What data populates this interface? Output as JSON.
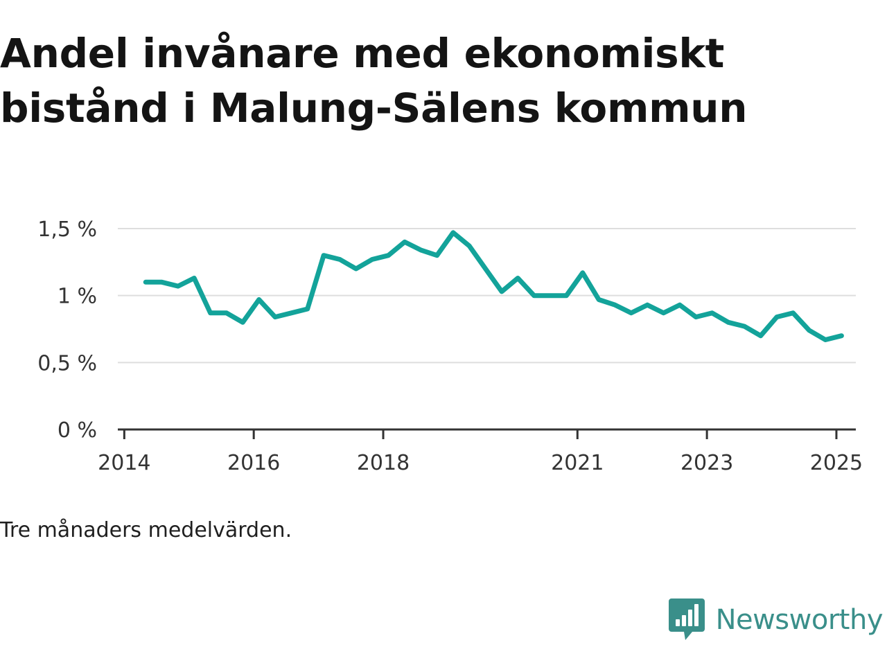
{
  "title_line1": "Andel invånare med ekonomiskt",
  "title_line2": "bistånd i Malung-Sälens kommun",
  "caption": "Tre månaders medelvärden.",
  "brand": {
    "name": "Newsworthy",
    "icon": "newsworthy-bar-chart-speech-bubble-icon",
    "color": "#3a8f8a"
  },
  "chart_data": {
    "type": "line",
    "title": "Andel invånare med ekonomiskt bistånd i Malung-Sälens kommun",
    "xlabel": "",
    "ylabel": "",
    "grid": true,
    "legend": "none",
    "line_color": "#13a39a",
    "xlim": [
      2013.9,
      2025.3
    ],
    "ylim": [
      0,
      1.5
    ],
    "x_ticks": [
      {
        "value": 2014,
        "label": "2014"
      },
      {
        "value": 2016,
        "label": "2016"
      },
      {
        "value": 2018,
        "label": "2018"
      },
      {
        "value": 2021,
        "label": "2021"
      },
      {
        "value": 2023,
        "label": "2023"
      },
      {
        "value": 2025,
        "label": "2025"
      }
    ],
    "y_ticks": [
      {
        "value": 0,
        "label": "0 %"
      },
      {
        "value": 0.5,
        "label": "0,5 %"
      },
      {
        "value": 1,
        "label": "1 %"
      },
      {
        "value": 1.5,
        "label": "1,5 %"
      }
    ],
    "series": [
      {
        "x": [
          2014.33,
          2014.58,
          2014.83,
          2015.08,
          2015.33,
          2015.58,
          2015.83,
          2016.08,
          2016.33,
          2016.58,
          2016.83,
          2017.08,
          2017.33,
          2017.58,
          2017.83,
          2018.08,
          2018.33,
          2018.58,
          2018.83,
          2019.08,
          2019.33,
          2019.58,
          2019.83,
          2020.08,
          2020.33,
          2020.58,
          2020.83,
          2021.08,
          2021.33,
          2021.58,
          2021.83,
          2022.08,
          2022.33,
          2022.58,
          2022.83,
          2023.08,
          2023.33,
          2023.58,
          2023.83,
          2024.08,
          2024.33,
          2024.58,
          2024.83,
          2025.08
        ],
        "values": [
          1.1,
          1.1,
          1.07,
          1.13,
          0.87,
          0.87,
          0.8,
          0.97,
          0.84,
          0.87,
          0.9,
          1.3,
          1.27,
          1.2,
          1.27,
          1.3,
          1.4,
          1.34,
          1.3,
          1.47,
          1.37,
          1.2,
          1.03,
          1.13,
          1.0,
          1.0,
          1.0,
          1.17,
          0.97,
          0.93,
          0.87,
          0.93,
          0.87,
          0.93,
          0.84,
          0.87,
          0.8,
          0.77,
          0.7,
          0.84,
          0.87,
          0.74,
          0.67,
          0.7
        ]
      }
    ]
  }
}
